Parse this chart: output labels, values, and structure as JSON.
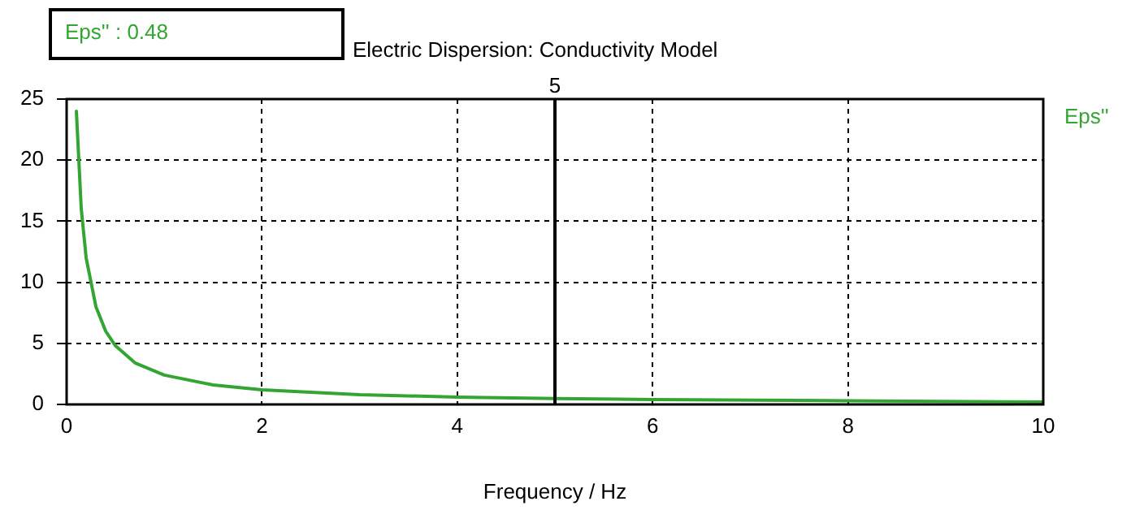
{
  "chart_data": {
    "type": "line",
    "title": "Electric Dispersion: Conductivity Model",
    "xlabel": "Frequency / Hz",
    "x": [
      0.1,
      0.15,
      0.2,
      0.3,
      0.4,
      0.5,
      0.7,
      1,
      1.5,
      2,
      3,
      4,
      5,
      6,
      8,
      10
    ],
    "series": [
      {
        "name": "Eps''",
        "color": "#33a532",
        "values": [
          24,
          16,
          12,
          8,
          6,
          4.8,
          3.4,
          2.4,
          1.6,
          1.2,
          0.8,
          0.6,
          0.48,
          0.4,
          0.3,
          0.2
        ]
      }
    ],
    "xlim": [
      0,
      10
    ],
    "xticks": [
      0,
      2,
      4,
      6,
      8,
      10
    ],
    "ylim": [
      0,
      25
    ],
    "yticks": [
      0,
      5,
      10,
      15,
      20,
      25
    ],
    "grid": true,
    "legend": "top right",
    "marker": "none",
    "line_style": "solid",
    "ref_lines": [
      {
        "axis": "x",
        "value": 5,
        "label": "5",
        "color": "#000000"
      }
    ],
    "annotations": [
      "Eps'' : 0.48"
    ]
  }
}
